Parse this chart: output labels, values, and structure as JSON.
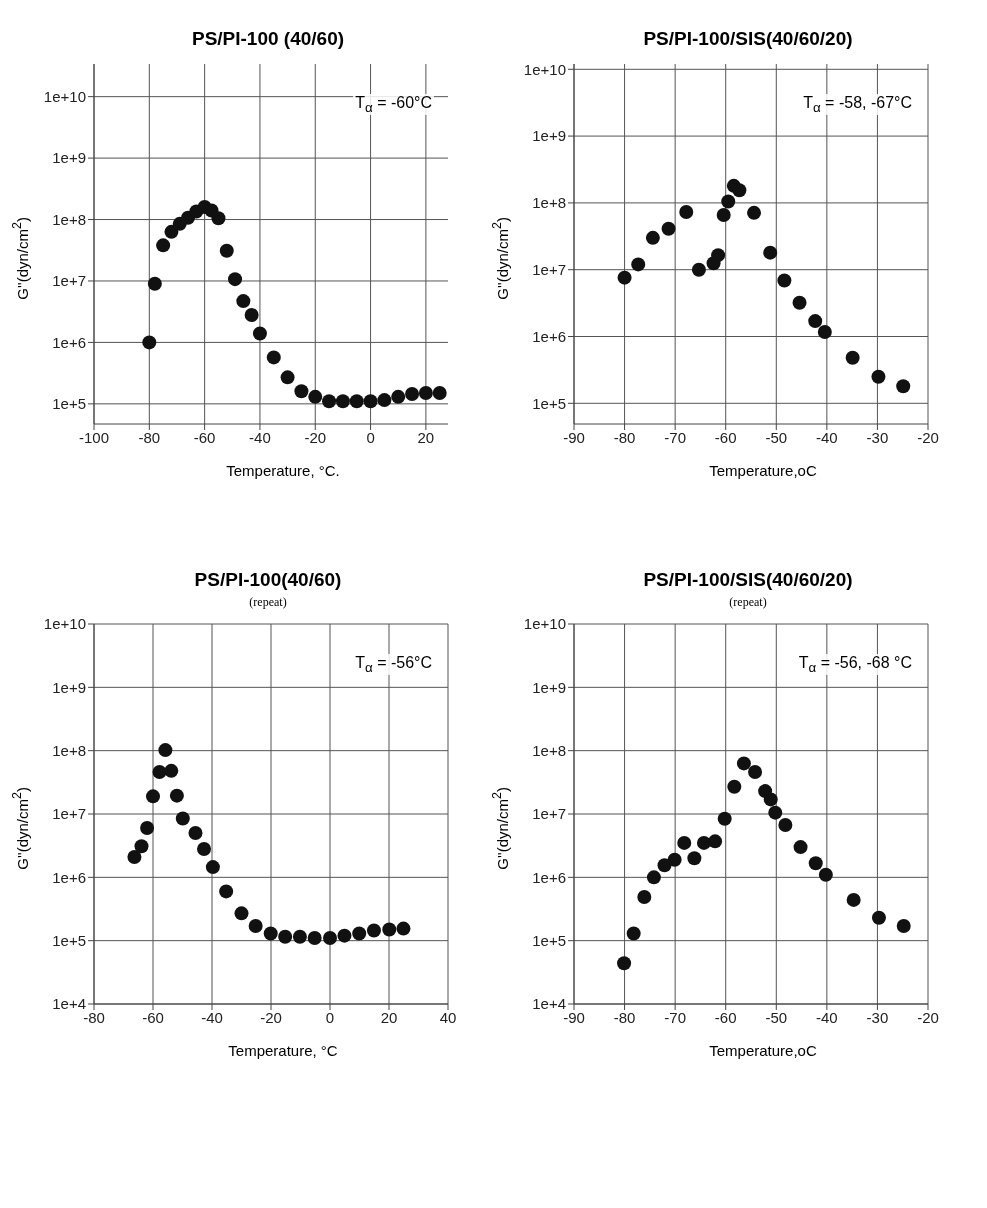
{
  "chart_data": [
    {
      "type": "scatter",
      "title": "PS/PI-100 (40/60)",
      "xlabel": "Temperature, °C.",
      "ylabel": "G''(dyn/cm$^{2}$)",
      "annotations": [
        "T$_{α}$ = -60°C"
      ],
      "log": "y",
      "grid": true,
      "marker": "circle",
      "xlim": [
        -100,
        28
      ],
      "xticks": [
        -100,
        -80,
        -60,
        -40,
        -20,
        0,
        20
      ],
      "ylim": [
        47000,
        34000000000
      ],
      "yticks": [
        {
          "value": 100000,
          "label": "1e+5"
        },
        {
          "value": 1000000,
          "label": "1e+6"
        },
        {
          "value": 10000000,
          "label": "1e+7"
        },
        {
          "value": 100000000,
          "label": "1e+8"
        },
        {
          "value": 1000000000,
          "label": "1e+9"
        },
        {
          "value": 10000000000,
          "label": "1e+10"
        }
      ],
      "series": [
        {
          "color": "#111111",
          "x": [
            -80,
            -78,
            -75,
            -72,
            -69,
            -66,
            -63,
            -60,
            -57.5,
            -55,
            -52,
            -49,
            -46,
            -43,
            -40,
            -35,
            -30,
            -25,
            -20,
            -15,
            -10,
            -5,
            0,
            5,
            10,
            15,
            20,
            25
          ],
          "values": [
            1000000,
            9000000,
            38000000,
            63000000,
            85000000,
            107000000,
            135000000,
            160000000,
            140000000,
            105000000,
            31000000,
            10700000,
            4700000,
            2800000,
            1400000,
            570000,
            270000,
            160000,
            130000,
            110000,
            110000,
            110000,
            110000,
            115000,
            130000,
            145000,
            150000,
            150000
          ]
        }
      ]
    },
    {
      "type": "scatter",
      "title": "PS/PI-100/SIS(40/60/20)",
      "xlabel": "Temperature,oC",
      "ylabel": "G''(dyn/cm$^{2}$)",
      "annotations": [
        "T$_{α}$ = -58, -67°C"
      ],
      "log": "y",
      "grid": true,
      "marker": "circle",
      "xlim": [
        -90,
        -20
      ],
      "xticks": [
        -90,
        -80,
        -70,
        -60,
        -50,
        -40,
        -30,
        -20
      ],
      "ylim": [
        49000,
        12000000000
      ],
      "yticks": [
        {
          "value": 100000,
          "label": "1e+5"
        },
        {
          "value": 1000000,
          "label": "1e+6"
        },
        {
          "value": 10000000,
          "label": "1e+7"
        },
        {
          "value": 100000000,
          "label": "1e+8"
        },
        {
          "value": 1000000000,
          "label": "1e+9"
        },
        {
          "value": 10000000000,
          "label": "1e+10"
        }
      ],
      "series": [
        {
          "color": "#111111",
          "x": [
            -80,
            -77.3,
            -74.4,
            -71.3,
            -67.8,
            -65.3,
            -62.4,
            -61.5,
            -60.4,
            -59.5,
            -58.4,
            -57.3,
            -54.4,
            -51.2,
            -48.4,
            -45.4,
            -42.3,
            -40.4,
            -34.9,
            -29.8,
            -24.9
          ],
          "values": [
            7600000,
            12000000,
            30000000,
            41000000,
            73000000,
            10000000,
            12500000,
            16500000,
            66000000,
            105000000,
            180000000,
            155000000,
            71000000,
            18000000,
            6900000,
            3200000,
            1700000,
            1170000,
            480000,
            250000,
            180000
          ]
        }
      ]
    },
    {
      "type": "scatter",
      "title": "PS/PI-100(40/60)",
      "subtitle": "(repeat)",
      "xlabel": "Temperature, °C",
      "ylabel": "G''(dyn/cm$^{2}$)",
      "annotations": [
        "T$_{α}$ = -56°C"
      ],
      "log": "y",
      "grid": true,
      "marker": "circle",
      "xlim": [
        -80,
        40
      ],
      "xticks": [
        -80,
        -60,
        -40,
        -20,
        0,
        20,
        40
      ],
      "ylim": [
        10000,
        10000000000
      ],
      "yticks": [
        {
          "value": 10000,
          "label": "1e+4"
        },
        {
          "value": 100000,
          "label": "1e+5"
        },
        {
          "value": 1000000,
          "label": "1e+6"
        },
        {
          "value": 10000000,
          "label": "1e+7"
        },
        {
          "value": 100000000,
          "label": "1e+8"
        },
        {
          "value": 1000000000,
          "label": "1e+9"
        },
        {
          "value": 10000000000,
          "label": "1e+10"
        }
      ],
      "series": [
        {
          "color": "#111111",
          "x": [
            -66.3,
            -63.9,
            -62,
            -60,
            -57.8,
            -55.8,
            -53.8,
            -51.9,
            -49.9,
            -45.6,
            -42.7,
            -39.7,
            -35.2,
            -30,
            -25.2,
            -20.1,
            -15.2,
            -10.2,
            -5.2,
            0,
            4.9,
            9.9,
            14.9,
            20.1,
            24.9
          ],
          "values": [
            2100000,
            3100000,
            6000000,
            19000000,
            46000000,
            102000000,
            48000000,
            19500000,
            8500000,
            5000000,
            2800000,
            1450000,
            600000,
            270000,
            170000,
            130000,
            115000,
            115000,
            110000,
            110000,
            120000,
            130000,
            145000,
            150000,
            155000
          ]
        }
      ]
    },
    {
      "type": "scatter",
      "title": "PS/PI-100/SIS(40/60/20)",
      "subtitle": "(repeat)",
      "xlabel": "Temperature,oC",
      "ylabel": "G''(dyn/cm$^{2}$)",
      "annotations": [
        "T$_{α}$ = -56, -68 °C"
      ],
      "log": "y",
      "grid": true,
      "marker": "circle",
      "xlim": [
        -90,
        -20
      ],
      "xticks": [
        -90,
        -80,
        -70,
        -60,
        -50,
        -40,
        -30,
        -20
      ],
      "ylim": [
        10000,
        10000000000
      ],
      "yticks": [
        {
          "value": 10000,
          "label": "1e+4"
        },
        {
          "value": 100000,
          "label": "1e+5"
        },
        {
          "value": 1000000,
          "label": "1e+6"
        },
        {
          "value": 10000000,
          "label": "1e+7"
        },
        {
          "value": 100000000,
          "label": "1e+8"
        },
        {
          "value": 1000000000,
          "label": "1e+9"
        },
        {
          "value": 10000000000,
          "label": "1e+10"
        }
      ],
      "series": [
        {
          "color": "#111111",
          "x": [
            -80.1,
            -78.2,
            -76.1,
            -74.2,
            -72.1,
            -70.1,
            -68.2,
            -66.2,
            -64.3,
            -62.1,
            -60.2,
            -58.3,
            -56.4,
            -54.2,
            -52.2,
            -51.1,
            -50.2,
            -48.2,
            -45.2,
            -42.2,
            -40.2,
            -34.7,
            -29.7,
            -24.8
          ],
          "values": [
            44000,
            130000,
            490000,
            1000000,
            1550000,
            1900000,
            3500000,
            2000000,
            3500000,
            3700000,
            8400000,
            27000000,
            63000000,
            46000000,
            23000000,
            17000000,
            10500000,
            6700000,
            3000000,
            1670000,
            1100000,
            440000,
            230000,
            170000
          ]
        }
      ]
    }
  ]
}
